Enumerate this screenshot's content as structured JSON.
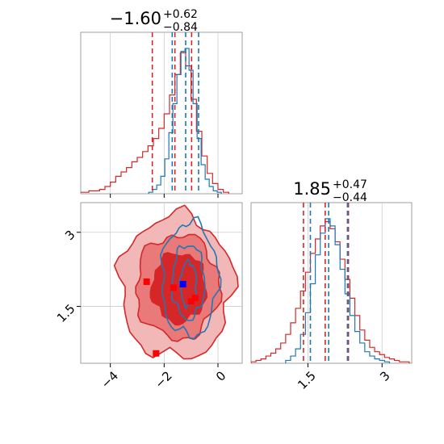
{
  "chart_data": [
    {
      "type": "histogram",
      "panel": "marginal-x",
      "title": "−1.60",
      "title_plus": "+0.62",
      "title_minus": "−0.84",
      "xlim": [
        -5.1,
        0.9
      ],
      "xticks": [
        -4,
        -2,
        0
      ],
      "grid": true,
      "series": [
        {
          "color": "#d62728",
          "quantiles": [
            -2.44,
            -1.6,
            -0.98
          ],
          "x": [
            -5.1,
            -4.9,
            -4.7,
            -4.5,
            -4.3,
            -4.1,
            -3.9,
            -3.7,
            -3.5,
            -3.3,
            -3.1,
            -2.9,
            -2.7,
            -2.5,
            -2.3,
            -2.1,
            -1.9,
            -1.7,
            -1.5,
            -1.3,
            -1.1,
            -0.9,
            -0.7,
            -0.5,
            -0.3,
            -0.1,
            0.1,
            0.3
          ],
          "counts": [
            0.01,
            0.01,
            0.02,
            0.02,
            0.03,
            0.05,
            0.08,
            0.12,
            0.15,
            0.18,
            0.22,
            0.25,
            0.29,
            0.33,
            0.38,
            0.45,
            0.55,
            0.68,
            0.82,
            0.97,
            0.88,
            0.65,
            0.43,
            0.26,
            0.14,
            0.07,
            0.03,
            0.01
          ]
        },
        {
          "color": "#1f77b4",
          "quantiles": [
            -1.7,
            -1.2,
            -0.72
          ],
          "x": [
            -2.5,
            -2.35,
            -2.2,
            -2.05,
            -1.9,
            -1.75,
            -1.6,
            -1.45,
            -1.3,
            -1.15,
            -1.0,
            -0.85,
            -0.7,
            -0.55,
            -0.4,
            -0.25,
            -0.1,
            0.05
          ],
          "counts": [
            0.01,
            0.03,
            0.06,
            0.12,
            0.24,
            0.42,
            0.62,
            0.82,
            0.98,
            1.0,
            0.85,
            0.62,
            0.38,
            0.2,
            0.1,
            0.05,
            0.02,
            0.01
          ]
        }
      ]
    },
    {
      "type": "histogram",
      "panel": "marginal-y",
      "title": "1.85",
      "title_plus": "+0.47",
      "title_minus": "−0.44",
      "xlim": [
        0.35,
        3.6
      ],
      "xticks": [
        1.5,
        3.0
      ],
      "grid": true,
      "series": [
        {
          "color": "#d62728",
          "quantiles": [
            1.41,
            1.85,
            2.32
          ],
          "x": [
            0.4,
            0.5,
            0.6,
            0.7,
            0.8,
            0.9,
            1.0,
            1.1,
            1.2,
            1.3,
            1.4,
            1.5,
            1.6,
            1.7,
            1.8,
            1.9,
            2.0,
            2.1,
            2.2,
            2.3,
            2.4,
            2.5,
            2.6,
            2.7,
            2.8,
            2.9,
            3.0,
            3.1,
            3.2,
            3.3,
            3.4,
            3.5
          ],
          "counts": [
            0.01,
            0.02,
            0.03,
            0.05,
            0.07,
            0.1,
            0.14,
            0.2,
            0.28,
            0.38,
            0.5,
            0.63,
            0.76,
            0.86,
            0.95,
            0.98,
            0.93,
            0.84,
            0.72,
            0.58,
            0.45,
            0.33,
            0.23,
            0.16,
            0.11,
            0.08,
            0.06,
            0.04,
            0.03,
            0.02,
            0.01,
            0.01
          ]
        },
        {
          "color": "#1f77b4",
          "quantiles": [
            1.55,
            1.92,
            2.3
          ],
          "x": [
            1.1,
            1.2,
            1.3,
            1.4,
            1.5,
            1.6,
            1.7,
            1.8,
            1.9,
            2.0,
            2.1,
            2.2,
            2.3,
            2.4,
            2.5,
            2.6,
            2.7,
            2.8,
            2.9,
            3.0,
            3.1
          ],
          "counts": [
            0.02,
            0.05,
            0.1,
            0.2,
            0.35,
            0.55,
            0.75,
            0.9,
            1.0,
            0.95,
            0.82,
            0.65,
            0.48,
            0.33,
            0.22,
            0.14,
            0.08,
            0.05,
            0.03,
            0.02,
            0.01
          ]
        }
      ]
    },
    {
      "type": "contour",
      "panel": "joint",
      "xlim": [
        -5.1,
        0.9
      ],
      "ylim": [
        0.35,
        3.6
      ],
      "xticks": [
        -4,
        -2,
        0
      ],
      "yticks": [
        1.5,
        3.0
      ],
      "grid": true,
      "red_contours": [
        {
          "cx": -1.55,
          "cy": 1.9,
          "rx": 2.1,
          "ry": 1.45,
          "fill": "#f2b8b8"
        },
        {
          "cx": -1.5,
          "cy": 1.9,
          "rx": 1.55,
          "ry": 1.05,
          "fill": "#ea7a7a"
        },
        {
          "cx": -1.45,
          "cy": 1.88,
          "rx": 1.0,
          "ry": 0.7,
          "fill": "#d62728"
        }
      ],
      "blue_contours": [
        {
          "cx": -1.05,
          "cy": 2.05,
          "rx": 1.05,
          "ry": 1.15
        },
        {
          "cx": -1.1,
          "cy": 2.0,
          "rx": 0.6,
          "ry": 0.75
        },
        {
          "cx": -1.1,
          "cy": 1.95,
          "rx": 0.3,
          "ry": 0.45
        }
      ],
      "red_squares": [
        [
          -2.65,
          2.0
        ],
        [
          -1.65,
          1.88
        ],
        [
          -1.0,
          1.6
        ],
        [
          -0.85,
          1.67
        ],
        [
          -2.3,
          0.55
        ]
      ],
      "blue_squares": [
        [
          -1.3,
          1.95
        ]
      ]
    }
  ]
}
